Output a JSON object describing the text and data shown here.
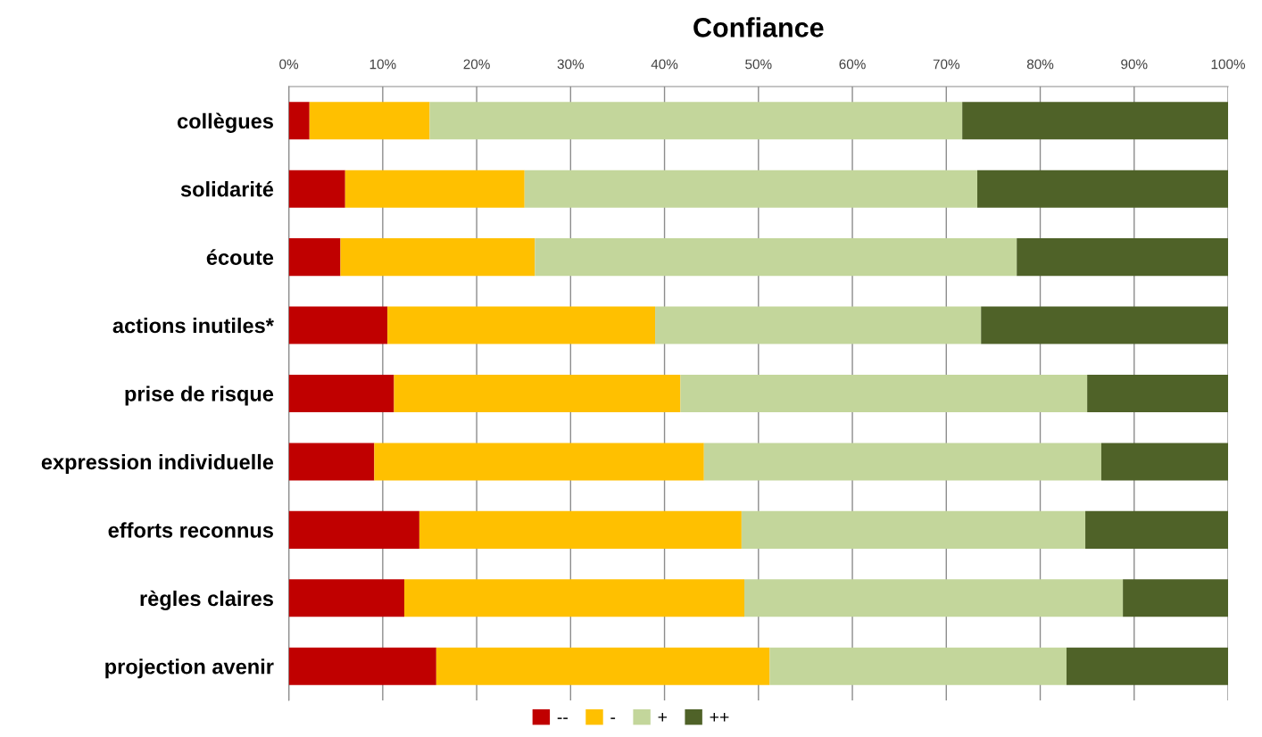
{
  "chart_data": {
    "type": "bar",
    "orientation": "horizontal",
    "stacked": true,
    "title": "Confiance",
    "categories": [
      "collègues",
      "solidarité",
      "écoute",
      "actions inutiles*",
      "prise de risque",
      "expression individuelle",
      "efforts reconnus",
      "règles claires",
      "projection avenir"
    ],
    "series": [
      {
        "name": "--",
        "color": "#c00000",
        "values": [
          2.2,
          6.0,
          5.5,
          10.5,
          11.2,
          9.1,
          13.9,
          12.3,
          15.7
        ]
      },
      {
        "name": "-",
        "color": "#ffc000",
        "values": [
          12.8,
          19.1,
          20.7,
          28.5,
          30.5,
          35.1,
          34.3,
          36.2,
          35.5
        ]
      },
      {
        "name": "+",
        "color": "#c3d69b",
        "values": [
          56.7,
          48.2,
          51.3,
          34.7,
          43.3,
          42.3,
          36.6,
          40.3,
          31.6
        ]
      },
      {
        "name": "++",
        "color": "#4f6228",
        "values": [
          28.3,
          26.7,
          22.5,
          26.3,
          15.0,
          13.5,
          15.2,
          11.2,
          17.2
        ]
      }
    ],
    "xlim": [
      0,
      100
    ],
    "xticks": [
      {
        "value": 0,
        "label": "0%"
      },
      {
        "value": 10,
        "label": "10%"
      },
      {
        "value": 20,
        "label": "20%"
      },
      {
        "value": 30,
        "label": "30%"
      },
      {
        "value": 40,
        "label": "40%"
      },
      {
        "value": 50,
        "label": "50%"
      },
      {
        "value": 60,
        "label": "60%"
      },
      {
        "value": 70,
        "label": "70%"
      },
      {
        "value": 80,
        "label": "80%"
      },
      {
        "value": 90,
        "label": "90%"
      },
      {
        "value": 100,
        "label": "100%"
      }
    ],
    "grid": "x",
    "legend": "bottom"
  }
}
